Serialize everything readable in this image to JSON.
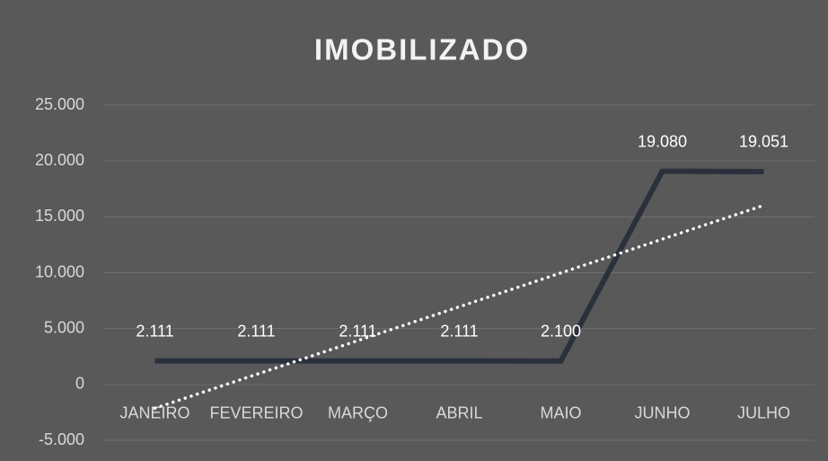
{
  "chart_data": {
    "type": "line",
    "title": "IMOBILIZADO",
    "categories": [
      "JANEIRO",
      "FEVEREIRO",
      "MARÇO",
      "ABRIL",
      "MAIO",
      "JUNHO",
      "JULHO"
    ],
    "series": [
      {
        "color": "#2b313c",
        "values": [
          2111,
          2111,
          2111,
          2111,
          2100,
          19080,
          19051
        ],
        "value_labels": [
          "2.111",
          "2.111",
          "2.111",
          "2.111",
          "2.100",
          "19.080",
          "19.051"
        ]
      }
    ],
    "ylim": [
      -5000,
      25000
    ],
    "yticks": [
      {
        "value": -5000,
        "label": "-5.000"
      },
      0,
      {
        "value": 5000,
        "label": "5.000"
      },
      {
        "value": 10000,
        "label": "10.000"
      },
      {
        "value": 15000,
        "label": "15.000"
      },
      {
        "value": 20000,
        "label": "20.000"
      },
      {
        "value": 25000,
        "label": "25.000"
      }
    ],
    "grid": true,
    "trendline": "linear",
    "trendline_color": "#ffffff"
  }
}
